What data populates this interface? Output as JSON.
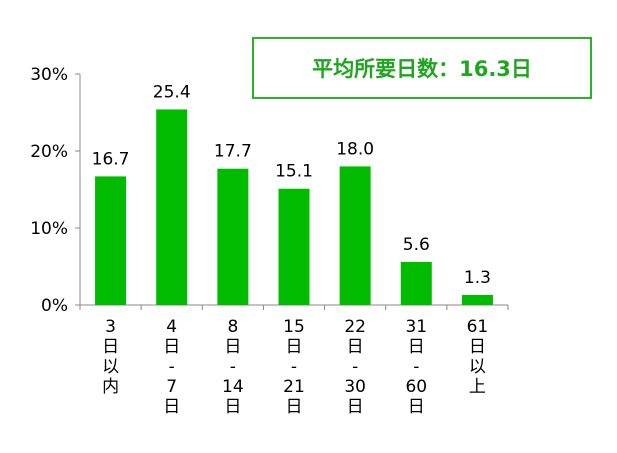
{
  "summary_box": {
    "label": "平均所要日数：16.3日"
  },
  "chart_data": {
    "type": "bar",
    "categories": [
      "3日以内",
      "4日-7日",
      "8日-14日",
      "15日-21日",
      "22日-30日",
      "31日-60日",
      "61日以上"
    ],
    "category_lines": [
      [
        "3",
        "日",
        "以",
        "内"
      ],
      [
        "4",
        "日",
        "-",
        "7",
        "日"
      ],
      [
        "8",
        "日",
        "-",
        "14",
        "日"
      ],
      [
        "15",
        "日",
        "-",
        "21",
        "日"
      ],
      [
        "22",
        "日",
        "-",
        "30",
        "日"
      ],
      [
        "31",
        "日",
        "-",
        "60",
        "日"
      ],
      [
        "61",
        "日",
        "以",
        "上"
      ]
    ],
    "values": [
      16.7,
      25.4,
      17.7,
      15.1,
      18.0,
      5.6,
      1.3
    ],
    "data_labels": [
      "16.7",
      "25.4",
      "17.7",
      "15.1",
      "18.0",
      "5.6",
      "1.3"
    ],
    "yticks": [
      "0%",
      "10%",
      "20%",
      "30%"
    ],
    "ylim": [
      0,
      30
    ],
    "grid": false,
    "bar_color": "#00bb00",
    "title": "",
    "xlabel": "",
    "ylabel": ""
  }
}
